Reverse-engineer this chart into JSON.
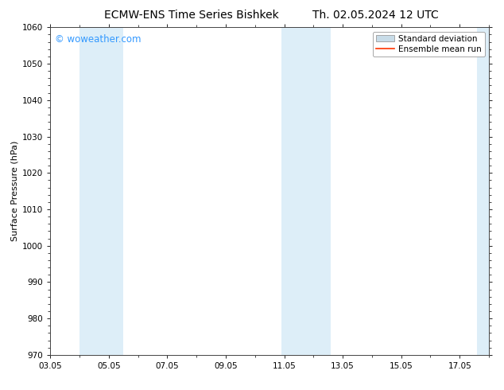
{
  "title_left": "ECMW-ENS Time Series Bishkek",
  "title_right": "Th. 02.05.2024 12 UTC",
  "ylabel": "Surface Pressure (hPa)",
  "ylim": [
    970,
    1060
  ],
  "yticks": [
    970,
    980,
    990,
    1000,
    1010,
    1020,
    1030,
    1040,
    1050,
    1060
  ],
  "xtick_labels": [
    "03.05",
    "05.05",
    "07.05",
    "09.05",
    "11.05",
    "13.05",
    "15.05",
    "17.05"
  ],
  "xmin": 0,
  "xmax": 15,
  "shaded_bands": [
    {
      "x_start": 1.0,
      "x_end": 2.5,
      "color": "#ddeef8"
    },
    {
      "x_start": 7.9,
      "x_end": 9.6,
      "color": "#ddeef8"
    },
    {
      "x_start": 14.6,
      "x_end": 15.0,
      "color": "#ddeef8"
    }
  ],
  "watermark_text": "© woweather.com",
  "watermark_color": "#3399ff",
  "legend_label_std": "Standard deviation",
  "legend_label_ens": "Ensemble mean run",
  "legend_color_std": "#c8dce8",
  "legend_color_ens": "#ff3300",
  "bg_color": "#ffffff",
  "title_fontsize": 10,
  "tick_fontsize": 7.5,
  "ylabel_fontsize": 8,
  "legend_fontsize": 7.5,
  "spine_color": "#444444"
}
